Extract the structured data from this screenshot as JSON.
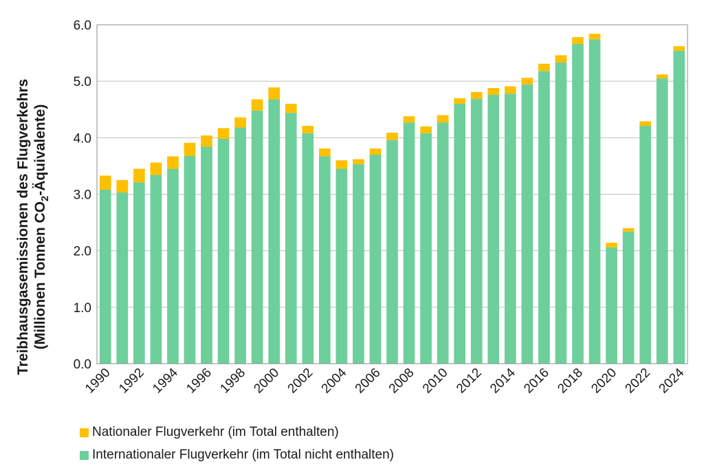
{
  "chart_data": {
    "type": "bar",
    "stacked": true,
    "categories": [
      "1990",
      "1991",
      "1992",
      "1993",
      "1994",
      "1995",
      "1996",
      "1997",
      "1998",
      "1999",
      "2000",
      "2001",
      "2002",
      "2003",
      "2004",
      "2005",
      "2006",
      "2007",
      "2008",
      "2009",
      "2010",
      "2011",
      "2012",
      "2013",
      "2014",
      "2015",
      "2016",
      "2017",
      "2018",
      "2019",
      "2020",
      "2021",
      "2022",
      "2023",
      "2024"
    ],
    "xtick_labels": [
      "1990",
      "1992",
      "1994",
      "1996",
      "1998",
      "2000",
      "2002",
      "2004",
      "2006",
      "2008",
      "2010",
      "2012",
      "2014",
      "2016",
      "2018",
      "2020",
      "2022",
      "2024"
    ],
    "series": [
      {
        "name": "Internationaler Flugverkehr (im Total nicht enthalten)",
        "color": "#6dcf9b",
        "values": [
          3.08,
          3.03,
          3.21,
          3.34,
          3.45,
          3.68,
          3.84,
          3.98,
          4.18,
          4.48,
          4.68,
          4.44,
          4.08,
          3.67,
          3.45,
          3.53,
          3.7,
          3.96,
          4.27,
          4.08,
          4.27,
          4.6,
          4.69,
          4.76,
          4.78,
          4.94,
          5.18,
          5.33,
          5.66,
          5.74,
          2.06,
          2.34,
          4.21,
          5.05,
          5.54
        ]
      },
      {
        "name": "Nationaler Flugverkehr (im Total enthalten)",
        "color": "#ffc000",
        "values": [
          0.25,
          0.22,
          0.24,
          0.22,
          0.22,
          0.23,
          0.2,
          0.19,
          0.18,
          0.2,
          0.21,
          0.16,
          0.13,
          0.14,
          0.15,
          0.09,
          0.11,
          0.13,
          0.11,
          0.12,
          0.13,
          0.1,
          0.12,
          0.12,
          0.13,
          0.12,
          0.13,
          0.13,
          0.12,
          0.1,
          0.08,
          0.06,
          0.08,
          0.07,
          0.08
        ]
      }
    ],
    "ylabel_line1": "Treibhausgasemissionen  des Flugverkehrs",
    "ylabel_line2_pre": "(Millionen Tonnen CO",
    "ylabel_line2_sub": "2",
    "ylabel_line2_post": "-Äquivalente)",
    "ylim": [
      0,
      6
    ],
    "yticks": [
      0,
      1,
      2,
      3,
      4,
      5,
      6
    ],
    "ytick_labels": [
      "0.0",
      "1.0",
      "2.0",
      "3.0",
      "4.0",
      "5.0",
      "6.0"
    ],
    "grid": true,
    "legend_position": "bottom-left"
  },
  "legend": {
    "national": "Nationaler Flugverkehr (im Total enthalten)",
    "international": "Internationaler Flugverkehr (im Total nicht enthalten)",
    "national_color": "#ffc000",
    "international_color": "#6dcf9b"
  }
}
